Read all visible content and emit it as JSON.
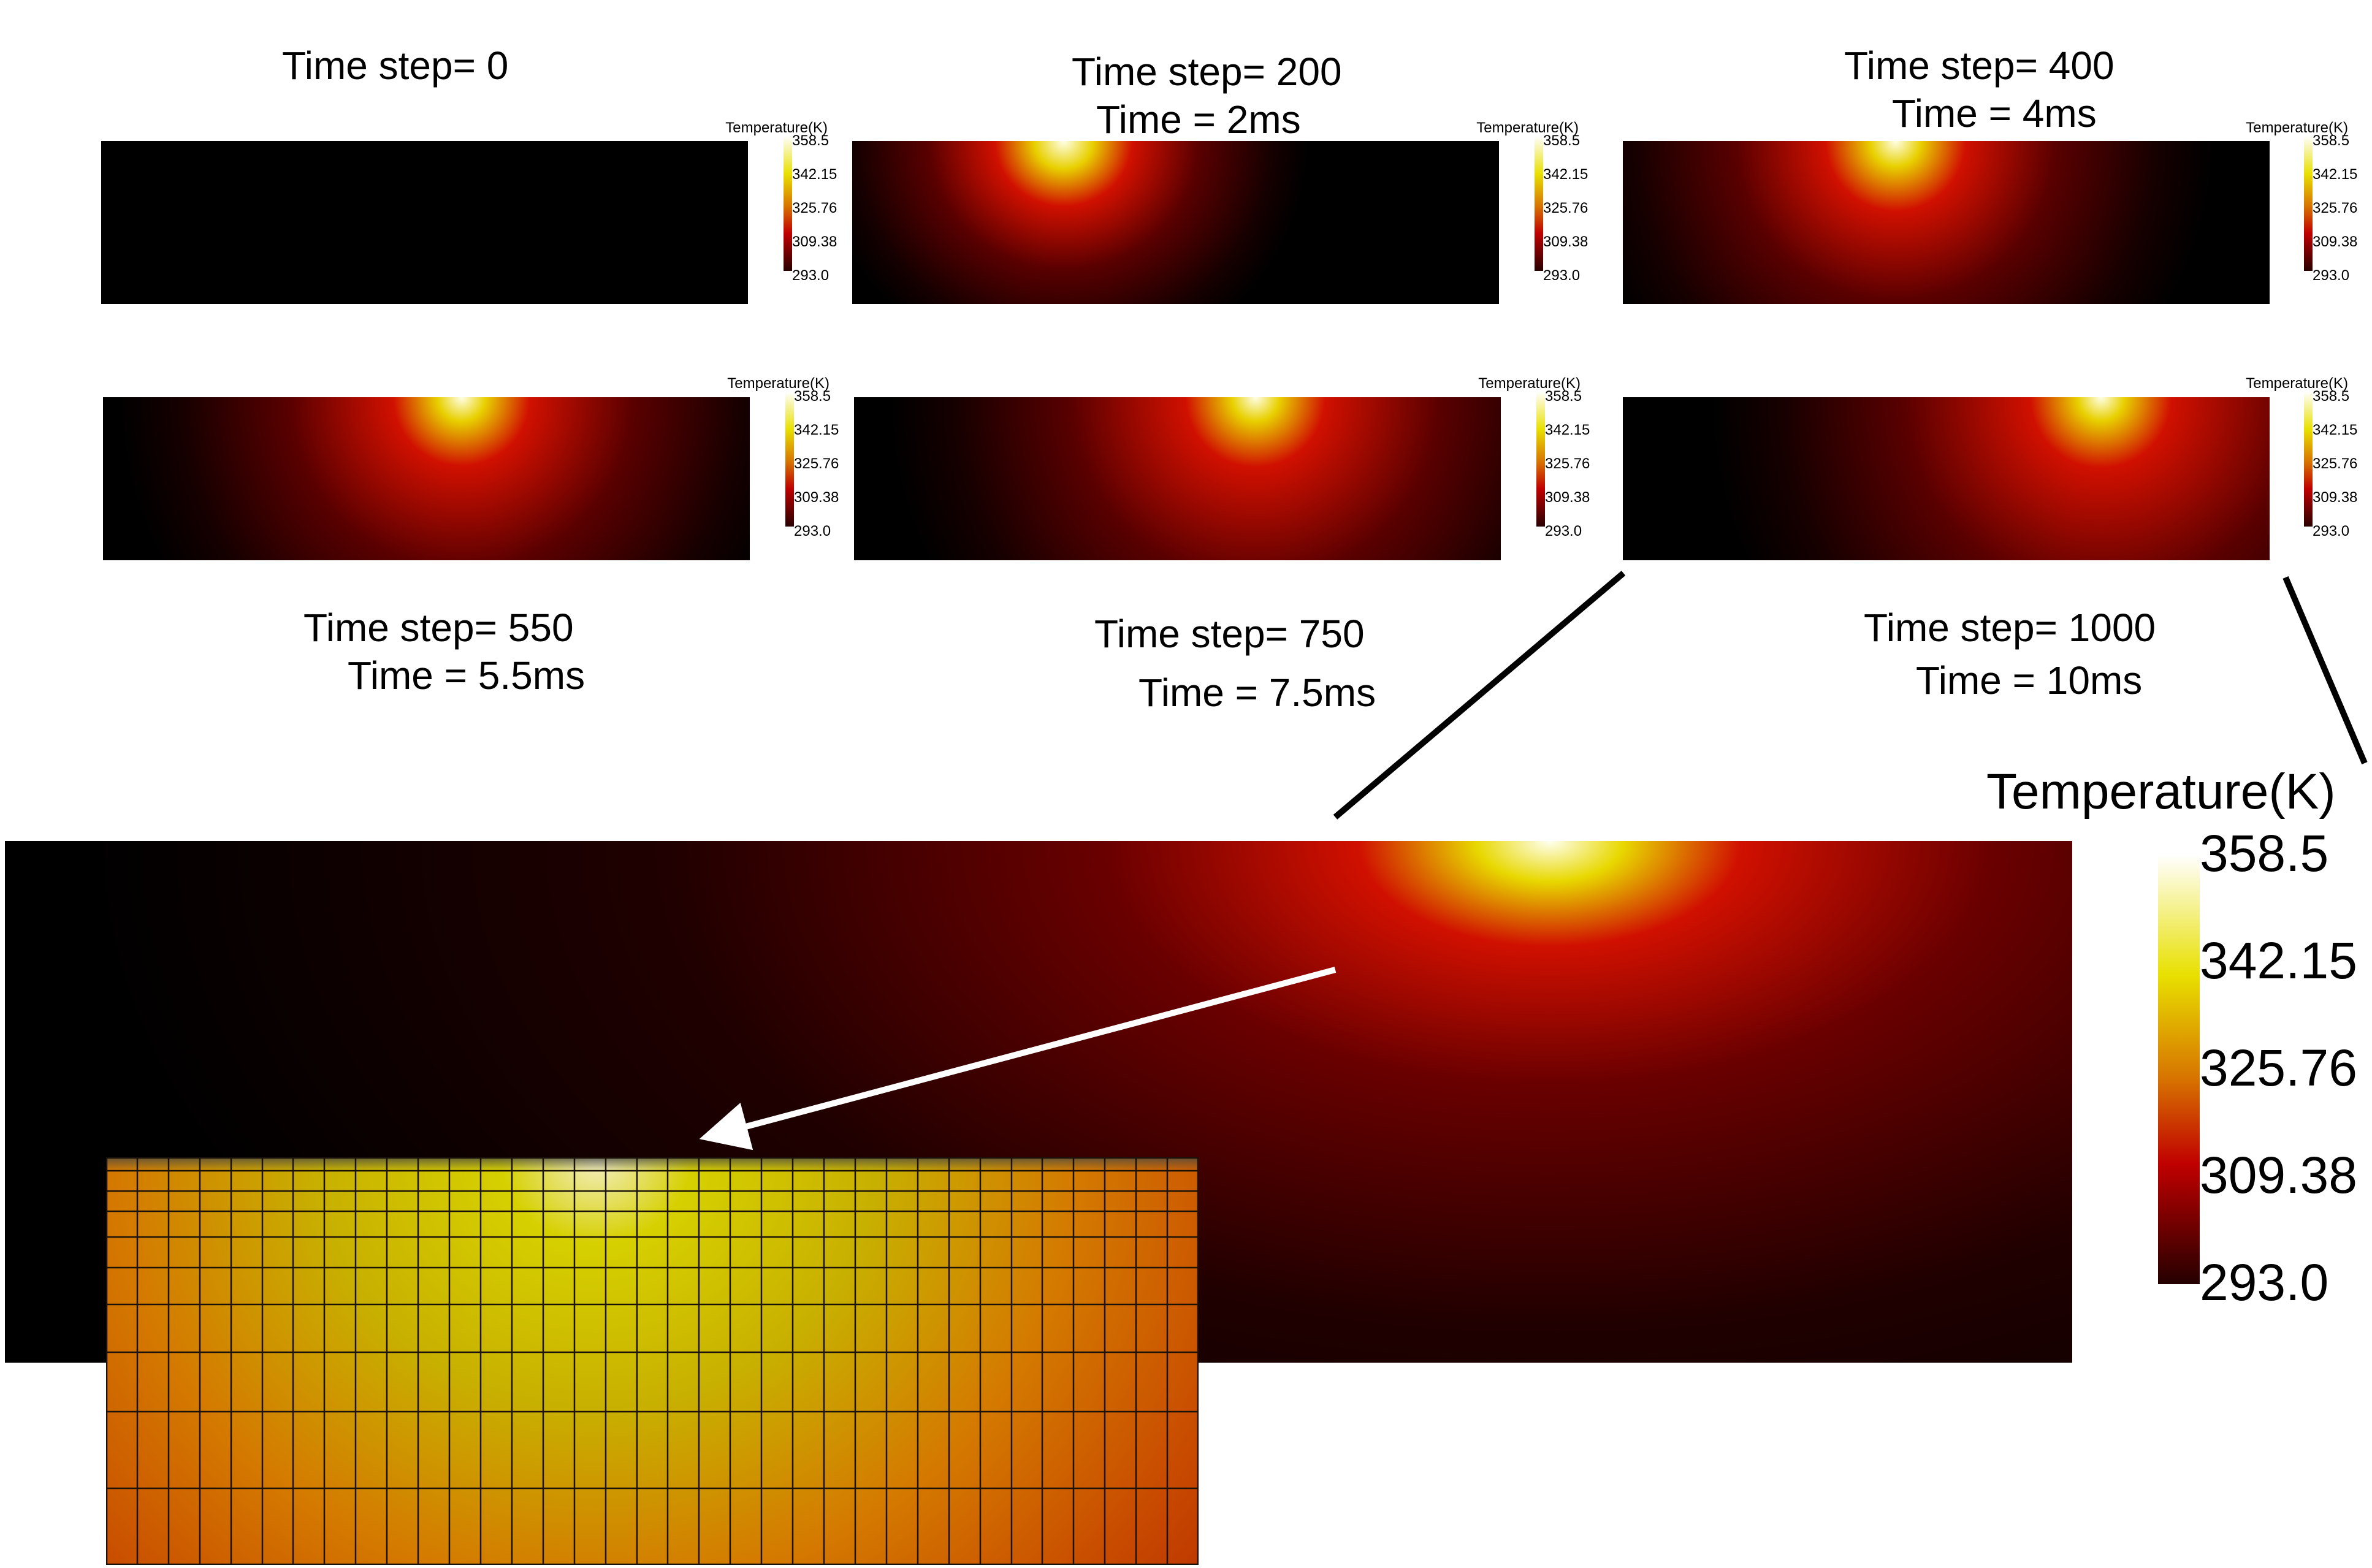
{
  "legend_title": "Temperature(K)",
  "legend_ticks": [
    "358.5",
    "342.15",
    "325.76",
    "309.38",
    "293.0"
  ],
  "panels": [
    {
      "line1": "Time step= 0",
      "line2": ""
    },
    {
      "line1": "Time step= 200",
      "line2": "Time = 2ms"
    },
    {
      "line1": "Time step= 400",
      "line2": "Time = 4ms"
    },
    {
      "line1": "Time step= 550",
      "line2": "Time = 5.5ms"
    },
    {
      "line1": "Time step= 750",
      "line2": "Time = 7.5ms"
    },
    {
      "line1": "Time step= 1000",
      "line2": "Time = 10ms"
    }
  ],
  "colors": {
    "background": "#000000",
    "hot_core": "#ffffff",
    "yellow": "#e8e000",
    "orange": "#d77400",
    "red": "#c00000"
  }
}
